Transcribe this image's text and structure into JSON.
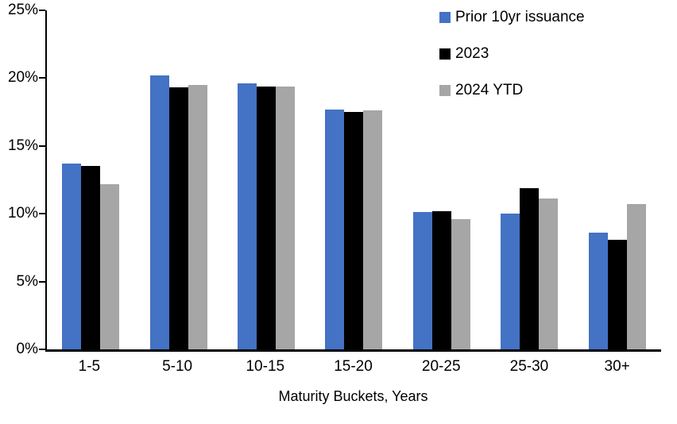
{
  "chart_data": {
    "type": "bar",
    "categories": [
      "1-5",
      "5-10",
      "10-15",
      "15-20",
      "20-25",
      "25-30",
      "30+"
    ],
    "series": [
      {
        "name": "Prior 10yr issuance",
        "color": "#4472C4",
        "values": [
          13.7,
          20.2,
          19.6,
          17.7,
          10.1,
          10.0,
          8.6
        ]
      },
      {
        "name": "2023",
        "color": "#000000",
        "values": [
          13.5,
          19.3,
          19.4,
          17.5,
          10.2,
          11.9,
          8.1
        ]
      },
      {
        "name": "2024 YTD",
        "color": "#A6A6A6",
        "values": [
          12.2,
          19.5,
          19.4,
          17.6,
          9.6,
          11.1,
          10.7
        ]
      }
    ],
    "title": "",
    "xlabel": "Maturity Buckets, Years",
    "ylabel": "",
    "ylim": [
      0,
      25
    ],
    "ytick_step": 5,
    "ytick_labels": [
      "0%",
      "5%",
      "10%",
      "15%",
      "20%",
      "25%"
    ],
    "grid": false,
    "legend_position": "top-right",
    "axis_color": "#000000",
    "background_color": "#FFFFFF"
  }
}
